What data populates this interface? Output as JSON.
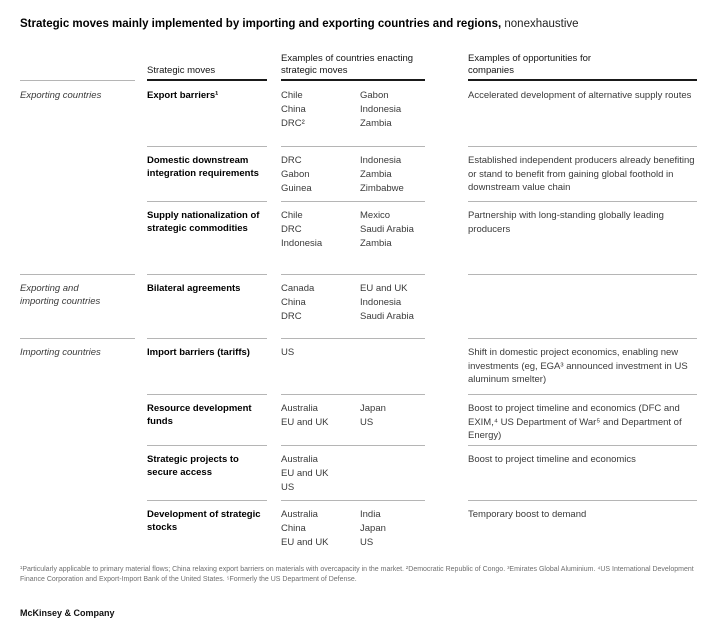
{
  "title": {
    "main": "Strategic moves mainly implemented by importing and exporting countries and regions,",
    "suffix": " nonexhaustive"
  },
  "columns": {
    "moves": "Strategic moves",
    "countries": "Examples of countries enacting strategic moves",
    "opportunities": "Examples of opportunities for companies"
  },
  "rows": [
    {
      "group": "Exporting countries",
      "move": "Export barriers¹",
      "countries_a": [
        "Chile",
        "China",
        "DRC²"
      ],
      "countries_b": [
        "Gabon",
        "Indonesia",
        "Zambia"
      ],
      "opportunity": "Accelerated development of alternative supply routes"
    },
    {
      "group": "",
      "move": "Domestic downstream integration requirements",
      "countries_a": [
        "DRC",
        "Gabon",
        "Guinea"
      ],
      "countries_b": [
        "Indonesia",
        "Zambia",
        "Zimbabwe"
      ],
      "opportunity": "Established independent producers already benefiting or stand to benefit from gaining global foothold in downstream value chain"
    },
    {
      "group": "",
      "move": "Supply nationalization of strategic commodities",
      "countries_a": [
        "Chile",
        "DRC",
        "Indonesia"
      ],
      "countries_b": [
        "Mexico",
        "Saudi Arabia",
        "Zambia"
      ],
      "opportunity": "Partnership with long-standing globally leading producers"
    },
    {
      "group": "Exporting and importing countries",
      "move": "Bilateral agreements",
      "countries_a": [
        "Canada",
        "China",
        "DRC"
      ],
      "countries_b": [
        "EU and UK",
        "Indonesia",
        "Saudi Arabia"
      ],
      "opportunity": ""
    },
    {
      "group": "Importing countries",
      "move": "Import barriers (tariffs)",
      "countries_a": [
        "US"
      ],
      "countries_b": [],
      "opportunity": "Shift in domestic project economics, enabling new investments (eg, EGA³ announced investment in US aluminum smelter)"
    },
    {
      "group": "",
      "move": "Resource development funds",
      "countries_a": [
        "Australia",
        "EU and UK"
      ],
      "countries_b": [
        "Japan",
        "US"
      ],
      "opportunity": "Boost to project timeline and economics (DFC and EXIM,⁴ US Department of War⁵ and Department of Energy)"
    },
    {
      "group": "",
      "move": "Strategic projects to secure access",
      "countries_a": [
        "Australia",
        "EU and UK",
        "US"
      ],
      "countries_b": [],
      "opportunity": "Boost to project timeline and economics"
    },
    {
      "group": "",
      "move": "Development of strategic stocks",
      "countries_a": [
        "Australia",
        "China",
        "EU and UK"
      ],
      "countries_b": [
        "India",
        "Japan",
        "US"
      ],
      "opportunity": "Temporary boost to demand"
    }
  ],
  "footnote": "¹Particularly applicable to primary material flows; China relaxing export barriers on materials with overcapacity in the market. ²Democratic Republic of Congo. ³Emirates Global Aluminium. ⁴US International Development Finance Corporation and Export-Import Bank of the United States. ⁵Formerly the US Department of Defense.",
  "footer": "McKinsey & Company",
  "colors": {
    "header_rule": "#1a1a1a",
    "row_rule": "#b5b5b5",
    "title_text": "#000000",
    "body_text": "#3a3a3a",
    "footnote_text": "#6f6f6f"
  }
}
